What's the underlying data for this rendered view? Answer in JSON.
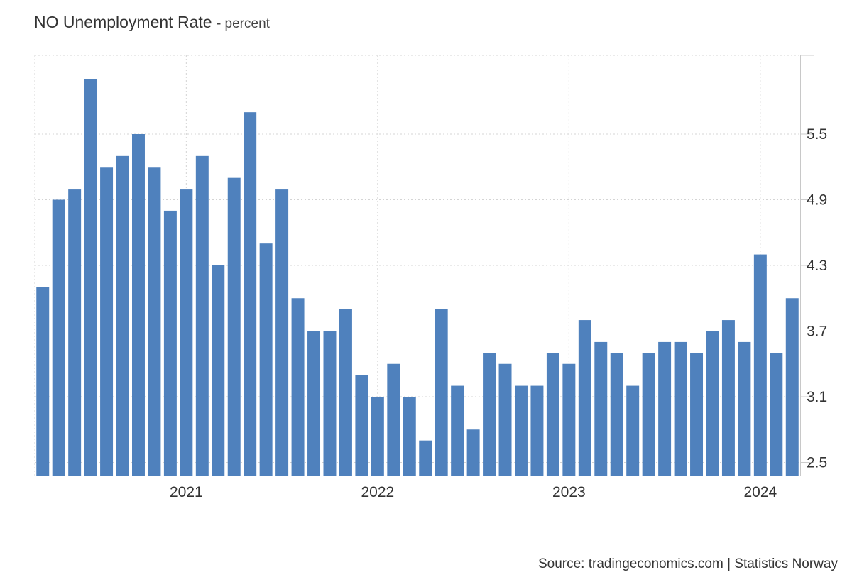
{
  "chart_data": {
    "type": "bar",
    "title": "NO Unemployment Rate",
    "unit": "percent",
    "source": "Source: tradingeconomics.com | Statistics Norway",
    "ylim": [
      2.38,
      6.22
    ],
    "yticks": [
      2.5,
      3.1,
      3.7,
      4.3,
      4.9,
      5.5
    ],
    "ytick_labels": [
      "2.5",
      "3.1",
      "3.7",
      "4.3",
      "4.9",
      "5.5"
    ],
    "xticks": [
      {
        "label": "2021",
        "category": "2021-01"
      },
      {
        "label": "2022",
        "category": "2022-01"
      },
      {
        "label": "2023",
        "category": "2023-01"
      },
      {
        "label": "2024",
        "category": "2024-01"
      }
    ],
    "y_axis_side": "right",
    "grid": true,
    "color": "#4f81bd",
    "categories": [
      "2020-04",
      "2020-05",
      "2020-06",
      "2020-07",
      "2020-08",
      "2020-09",
      "2020-10",
      "2020-11",
      "2020-12",
      "2021-01",
      "2021-02",
      "2021-03",
      "2021-04",
      "2021-05",
      "2021-06",
      "2021-07",
      "2021-08",
      "2021-09",
      "2021-10",
      "2021-11",
      "2021-12",
      "2022-01",
      "2022-02",
      "2022-03",
      "2022-04",
      "2022-05",
      "2022-06",
      "2022-07",
      "2022-08",
      "2022-09",
      "2022-10",
      "2022-11",
      "2022-12",
      "2023-01",
      "2023-02",
      "2023-03",
      "2023-04",
      "2023-05",
      "2023-06",
      "2023-07",
      "2023-08",
      "2023-09",
      "2023-10",
      "2023-11",
      "2023-12",
      "2024-01",
      "2024-02",
      "2024-03"
    ],
    "values": [
      4.1,
      4.9,
      5.0,
      6.0,
      5.2,
      5.3,
      5.5,
      5.2,
      4.8,
      5.0,
      5.3,
      4.3,
      5.1,
      5.7,
      4.5,
      5.0,
      4.0,
      3.7,
      3.7,
      3.9,
      3.3,
      3.1,
      3.4,
      3.1,
      2.7,
      3.9,
      3.2,
      2.8,
      3.5,
      3.4,
      3.2,
      3.2,
      3.5,
      3.4,
      3.8,
      3.6,
      3.5,
      3.2,
      3.5,
      3.6,
      3.6,
      3.5,
      3.7,
      3.8,
      3.6,
      4.4,
      3.5,
      4.0
    ]
  }
}
